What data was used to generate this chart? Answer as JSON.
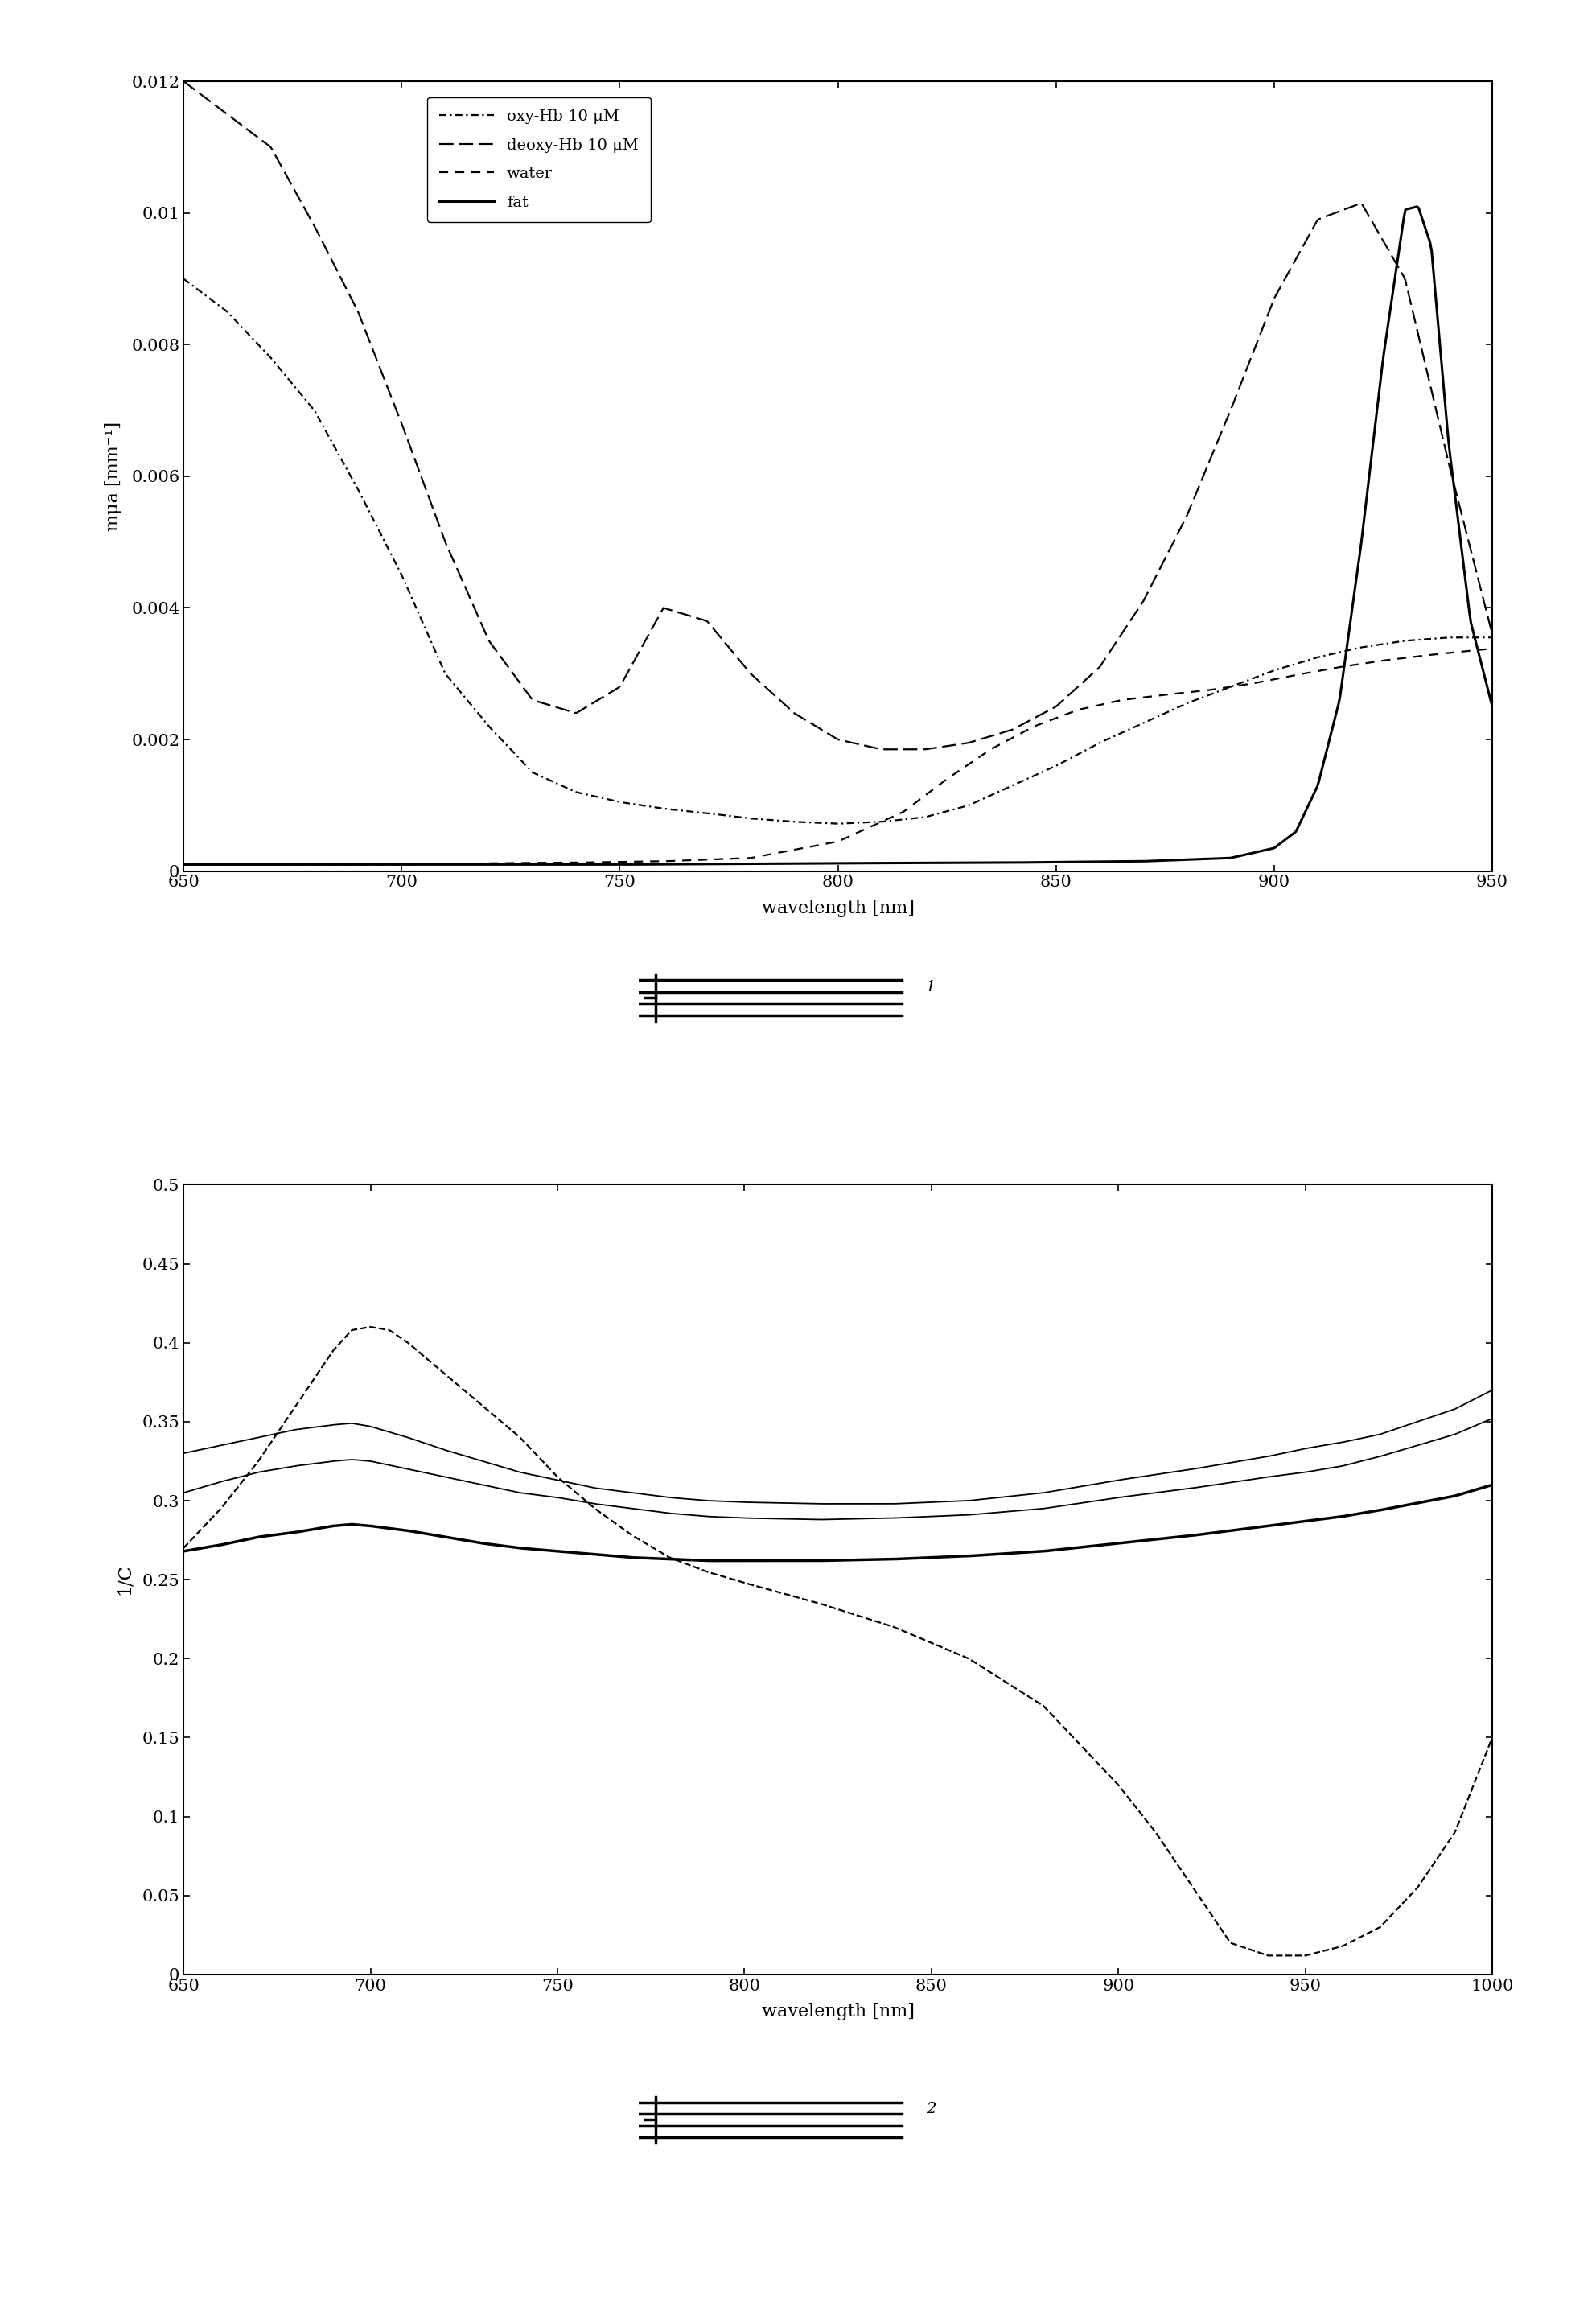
{
  "fig1": {
    "xlim": [
      650,
      950
    ],
    "ylim": [
      0,
      0.012
    ],
    "xlabel": "wavelength [nm]",
    "ylabel": "mμa [mm⁻¹]",
    "xticks": [
      650,
      700,
      750,
      800,
      850,
      900,
      950
    ],
    "yticks": [
      0,
      0.002,
      0.004,
      0.006,
      0.008,
      0.01,
      0.012
    ],
    "ytick_labels": [
      "0",
      "0.002",
      "0.004",
      "0.006",
      "0.008",
      "0.01",
      "0.012"
    ],
    "legend": [
      "oxy-Hb 10 μM",
      "deoxy-Hb 10 μM",
      "water",
      "fat"
    ]
  },
  "fig2": {
    "xlim": [
      650,
      1000
    ],
    "ylim": [
      0,
      0.5
    ],
    "xlabel": "wavelength [nm]",
    "ylabel": "1/C",
    "xticks": [
      650,
      700,
      750,
      800,
      850,
      900,
      950,
      1000
    ],
    "yticks": [
      0,
      0.05,
      0.1,
      0.15,
      0.2,
      0.25,
      0.3,
      0.35,
      0.4,
      0.45,
      0.5
    ],
    "ytick_labels": [
      "0",
      "0.05",
      "0.1",
      "0.15",
      "0.2",
      "0.25",
      "0.3",
      "0.35",
      "0.4",
      "0.45",
      "0.5"
    ]
  }
}
